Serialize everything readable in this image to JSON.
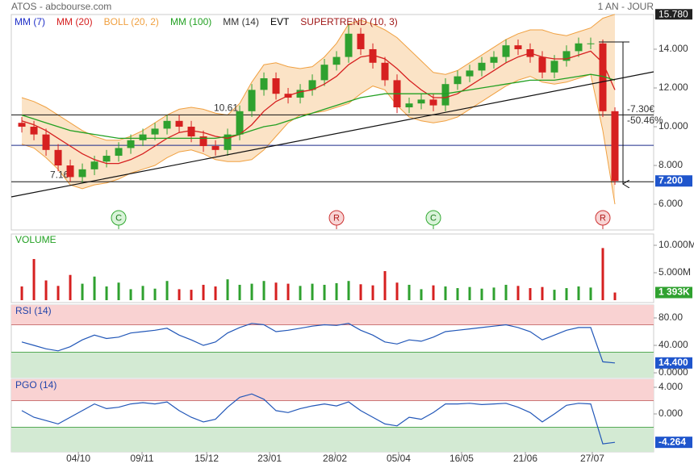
{
  "header": {
    "title": "ATOS - abcbourse.com",
    "period": "1 AN - JOUR"
  },
  "chart_data": [
    {
      "type": "candlestick",
      "x": [
        0,
        1,
        2,
        3,
        4,
        5,
        6,
        7,
        8,
        9,
        10,
        11,
        12,
        13,
        14,
        15,
        16,
        17,
        18,
        19,
        20,
        21,
        22,
        23,
        24,
        25,
        26,
        27,
        28,
        29,
        30,
        31,
        32,
        33,
        34,
        35,
        36,
        37,
        38,
        39,
        40,
        41,
        42,
        43,
        44,
        45,
        46,
        47,
        48,
        49
      ],
      "xlim": [
        -0.87,
        52.2
      ],
      "open": [
        10.2,
        10.0,
        9.6,
        8.8,
        8.0,
        7.4,
        7.8,
        8.2,
        8.5,
        8.9,
        9.3,
        9.6,
        9.9,
        10.3,
        10.0,
        9.5,
        9.0,
        8.8,
        9.6,
        10.8,
        11.9,
        12.5,
        11.7,
        11.5,
        11.9,
        12.4,
        13.2,
        13.6,
        14.8,
        14.0,
        13.3,
        12.4,
        11.0,
        11.2,
        11.4,
        11.1,
        12.2,
        12.6,
        12.9,
        13.3,
        13.6,
        14.2,
        14.0,
        13.6,
        12.8,
        13.4,
        13.9,
        14.3,
        14.3,
        10.8
      ],
      "high": [
        10.5,
        10.3,
        9.9,
        9.1,
        8.3,
        8.1,
        8.5,
        8.8,
        9.2,
        9.6,
        9.9,
        10.2,
        10.6,
        10.6,
        10.3,
        9.8,
        9.3,
        9.9,
        11.1,
        12.2,
        12.8,
        12.8,
        12.0,
        12.2,
        12.7,
        13.5,
        13.9,
        15.3,
        15.1,
        14.3,
        13.6,
        12.7,
        11.5,
        11.7,
        11.7,
        12.5,
        12.9,
        13.2,
        13.6,
        13.9,
        14.5,
        14.5,
        14.3,
        13.9,
        13.7,
        14.2,
        14.6,
        14.6,
        14.5,
        11.0
      ],
      "low": [
        9.7,
        9.3,
        8.5,
        7.7,
        7.16,
        7.1,
        7.5,
        7.9,
        8.2,
        8.6,
        9.0,
        9.3,
        9.6,
        9.7,
        9.2,
        8.7,
        8.5,
        8.5,
        9.3,
        10.5,
        11.6,
        11.4,
        11.2,
        11.2,
        11.6,
        12.1,
        12.9,
        13.3,
        13.7,
        13.0,
        12.1,
        10.7,
        10.7,
        10.9,
        10.8,
        10.8,
        11.9,
        12.3,
        12.6,
        13.0,
        13.3,
        13.7,
        13.3,
        12.5,
        12.5,
        13.1,
        13.6,
        14.0,
        10.5,
        7.0
      ],
      "close": [
        10.0,
        9.6,
        8.8,
        8.0,
        7.4,
        7.8,
        8.2,
        8.5,
        8.9,
        9.3,
        9.6,
        9.9,
        10.3,
        10.0,
        9.5,
        9.0,
        8.8,
        9.6,
        10.8,
        11.9,
        12.5,
        11.7,
        11.5,
        11.9,
        12.4,
        13.2,
        13.6,
        14.8,
        14.0,
        13.3,
        12.4,
        11.0,
        11.2,
        11.4,
        11.1,
        12.2,
        12.6,
        12.9,
        13.3,
        13.6,
        14.2,
        14.0,
        13.6,
        12.8,
        13.4,
        13.9,
        14.3,
        14.3,
        10.8,
        7.2
      ],
      "up_color": "#2fa12f",
      "down_color": "#d62020",
      "series": [
        {
          "name": "MM (7)",
          "color": "#2030c8"
        },
        {
          "name": "MM (20)",
          "color": "#d62020",
          "values": [
            10.3,
            10.1,
            9.8,
            9.4,
            9.0,
            8.6,
            8.3,
            8.1,
            8.1,
            8.3,
            8.6,
            9.0,
            9.4,
            9.7,
            9.8,
            9.7,
            9.5,
            9.4,
            9.6,
            10.1,
            10.8,
            11.3,
            11.6,
            11.8,
            11.9,
            12.2,
            12.6,
            13.2,
            13.6,
            13.7,
            13.5,
            13.0,
            12.4,
            11.9,
            11.5,
            11.5,
            11.7,
            12.1,
            12.5,
            12.9,
            13.3,
            13.6,
            13.8,
            13.6,
            13.5,
            13.5,
            13.7,
            13.9,
            13.3,
            11.9
          ]
        },
        {
          "name": "BOLL (20, 2)",
          "color": "#f0a040",
          "fill": "#fbe3c6",
          "upper": [
            11.5,
            11.3,
            11.0,
            10.6,
            10.2,
            9.8,
            9.5,
            9.3,
            9.3,
            9.5,
            9.8,
            10.2,
            10.6,
            10.9,
            11.0,
            10.9,
            10.7,
            10.6,
            11.2,
            12.3,
            13.2,
            13.3,
            13.1,
            13.0,
            13.1,
            13.6,
            14.3,
            15.3,
            15.5,
            15.3,
            15.0,
            14.6,
            14.0,
            13.4,
            12.8,
            12.7,
            12.9,
            13.3,
            13.7,
            14.1,
            14.5,
            14.8,
            15.0,
            15.0,
            14.8,
            14.7,
            14.9,
            15.1,
            15.6,
            15.8
          ],
          "lower": [
            9.1,
            8.9,
            8.4,
            7.8,
            7.0,
            6.8,
            7.0,
            7.1,
            7.3,
            7.6,
            7.8,
            8.0,
            8.4,
            8.7,
            8.8,
            8.6,
            8.3,
            8.2,
            8.2,
            8.3,
            8.8,
            9.5,
            10.2,
            10.6,
            10.7,
            10.8,
            11.0,
            11.2,
            11.7,
            12.1,
            11.9,
            11.1,
            10.5,
            10.3,
            10.2,
            10.3,
            10.5,
            10.9,
            11.3,
            11.7,
            12.1,
            12.4,
            12.6,
            12.3,
            12.2,
            12.3,
            12.5,
            12.7,
            9.8,
            6.0
          ]
        },
        {
          "name": "MM (100)",
          "color": "#22a022",
          "values": [
            10.6,
            10.4,
            10.2,
            10.0,
            9.8,
            9.7,
            9.6,
            9.5,
            9.4,
            9.4,
            9.4,
            9.4,
            9.4,
            9.4,
            9.4,
            9.4,
            9.4,
            9.5,
            9.6,
            9.8,
            10.0,
            10.1,
            10.3,
            10.5,
            10.7,
            10.9,
            11.1,
            11.3,
            11.5,
            11.6,
            11.7,
            11.7,
            11.7,
            11.7,
            11.7,
            11.7,
            11.8,
            11.9,
            12.0,
            12.1,
            12.2,
            12.3,
            12.4,
            12.4,
            12.4,
            12.5,
            12.6,
            12.7,
            12.6,
            12.4
          ]
        },
        {
          "name": "MM (14)",
          "color": "#333333"
        },
        {
          "name": "EVT",
          "color": "#000000"
        },
        {
          "name": "SUPERTREND (10, 3)",
          "color": "#a01818"
        }
      ],
      "ylim": [
        4.67,
        15.79
      ],
      "yticks": [
        {
          "value": 6,
          "label": "6.000"
        },
        {
          "value": 8,
          "label": "8.000"
        },
        {
          "value": 10,
          "label": "10.000"
        },
        {
          "value": 12,
          "label": "12.000"
        },
        {
          "value": 14,
          "label": "14.000"
        }
      ],
      "max_price": {
        "value": 15.78,
        "label": "15.780"
      },
      "last": {
        "value": 7.2,
        "label": "7.200"
      },
      "levels": [
        10.61,
        7.16
      ],
      "channel": 9.04,
      "signals": [
        {
          "label": "C",
          "index": 8
        },
        {
          "label": "R",
          "index": 26
        },
        {
          "label": "C",
          "index": 34
        },
        {
          "label": "R",
          "index": 48
        }
      ],
      "annotations": [
        "-7.30€",
        "-50.46%"
      ],
      "grid": false
    },
    {
      "type": "bar",
      "title": "VOLUME",
      "values": [
        2.5,
        7.5,
        3.6,
        2.6,
        4.6,
        3.0,
        4.3,
        2.5,
        3.2,
        2.0,
        2.6,
        2.1,
        3.5,
        2.0,
        1.9,
        2.8,
        2.5,
        3.8,
        2.8,
        3.0,
        3.5,
        3.2,
        3.0,
        2.6,
        3.0,
        2.8,
        3.1,
        3.5,
        2.9,
        2.7,
        5.3,
        3.2,
        2.8,
        2.0,
        2.7,
        2.5,
        2.2,
        2.4,
        2.1,
        2.3,
        2.8,
        2.6,
        2.2,
        2.4,
        1.9,
        2.2,
        2.5,
        2.3,
        9.5,
        1.393
      ],
      "ylim": [
        -0.44,
        12.06
      ],
      "yticks": [
        {
          "value": 5,
          "label": "5.000M"
        },
        {
          "value": 10,
          "label": "10.000M"
        }
      ],
      "last": {
        "value": 1.393,
        "label": "1 393K"
      }
    },
    {
      "type": "line",
      "title": "RSI (14)",
      "color": "#2257b8",
      "values": [
        45,
        40,
        35,
        32,
        38,
        48,
        55,
        50,
        52,
        58,
        60,
        62,
        65,
        55,
        48,
        40,
        45,
        58,
        66,
        72,
        70,
        60,
        62,
        65,
        68,
        70,
        69,
        72,
        62,
        55,
        45,
        42,
        48,
        46,
        52,
        60,
        62,
        64,
        66,
        68,
        70,
        66,
        60,
        48,
        55,
        62,
        66,
        66,
        16,
        14.4
      ],
      "ylim": [
        -7,
        98.8
      ],
      "yticks": [
        {
          "value": 0,
          "label": "0.0000"
        },
        {
          "value": 40,
          "label": "40.000"
        },
        {
          "value": 80,
          "label": "80.00"
        }
      ],
      "bands": {
        "upper": 70,
        "lower": 30
      },
      "last": {
        "value": 14.4,
        "label": "14.400"
      }
    },
    {
      "type": "line",
      "title": "PGO (14)",
      "color": "#2257b8",
      "values": [
        0.5,
        -0.5,
        -1.0,
        -1.5,
        -0.5,
        0.5,
        1.5,
        0.8,
        1.0,
        1.5,
        1.7,
        1.5,
        1.8,
        0.5,
        -0.5,
        -1.2,
        -0.8,
        1.0,
        2.5,
        3.0,
        2.2,
        0.5,
        0.2,
        0.8,
        1.2,
        1.5,
        1.2,
        1.8,
        0.5,
        -0.5,
        -1.5,
        -1.8,
        -0.5,
        -0.8,
        0.2,
        1.5,
        1.5,
        1.6,
        1.4,
        1.5,
        1.6,
        1.0,
        0.2,
        -1.2,
        0.0,
        1.3,
        1.6,
        1.5,
        -4.5,
        -4.264
      ],
      "ylim": [
        -5.7,
        5.21
      ],
      "yticks": [
        {
          "value": 0,
          "label": "0.000"
        },
        {
          "value": 4,
          "label": "4.000"
        }
      ],
      "bands": {
        "upper": 2,
        "lower": -2
      },
      "last": -4.264,
      "xticks": [
        {
          "value": 4.67,
          "label": "04/10"
        },
        {
          "value": 9.93,
          "label": "09/11"
        },
        {
          "value": 15.27,
          "label": "15/12"
        },
        {
          "value": 20.47,
          "label": "23/01"
        },
        {
          "value": 25.87,
          "label": "28/02"
        },
        {
          "value": 31.13,
          "label": "05/04"
        },
        {
          "value": 36.33,
          "label": "16/05"
        },
        {
          "value": 41.6,
          "label": "21/06"
        },
        {
          "value": 47.13,
          "label": "27/07"
        }
      ]
    }
  ]
}
